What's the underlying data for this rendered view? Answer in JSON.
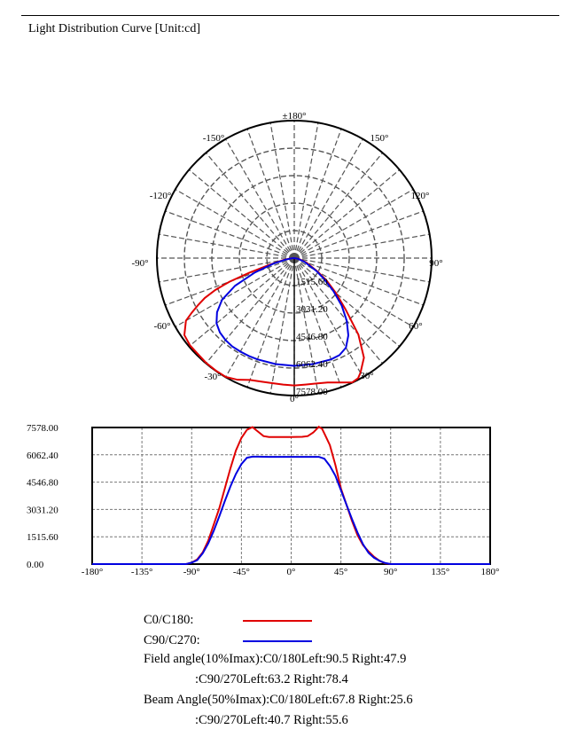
{
  "header": {
    "title": "Light Distribution Curve [Unit:cd]"
  },
  "colors": {
    "c0": "#e00000",
    "c90": "#0000e0",
    "grid": "#555555"
  },
  "chart_data": [
    {
      "type": "polar",
      "angle_labels": [
        "±180°",
        "150°",
        "120°",
        "90°",
        "60°",
        "30°",
        "0°",
        "-30°",
        "-60°",
        "-90°",
        "-120°",
        "-150°"
      ],
      "radial_labels": [
        "1515.60",
        "3031.20",
        "4546.80",
        "6062.40",
        "7578.00"
      ],
      "rmax": 7578.0,
      "series": [
        {
          "name": "C0/C180",
          "points": [
            [
              -90,
              0
            ],
            [
              -85,
              200
            ],
            [
              -80,
              600
            ],
            [
              -75,
              1400
            ],
            [
              -72,
              2600
            ],
            [
              -70,
              3800
            ],
            [
              -68,
              4700
            ],
            [
              -66,
              5400
            ],
            [
              -64,
              5900
            ],
            [
              -62,
              6400
            ],
            [
              -60,
              6900
            ],
            [
              -55,
              7400
            ],
            [
              -50,
              7500
            ],
            [
              -45,
              7500
            ],
            [
              -40,
              7550
            ],
            [
              -35,
              7560
            ],
            [
              -30,
              7560
            ],
            [
              -25,
              7400
            ],
            [
              -20,
              7150
            ],
            [
              -15,
              7050
            ],
            [
              -10,
              7000
            ],
            [
              -5,
              7000
            ],
            [
              0,
              7020
            ],
            [
              5,
              7000
            ],
            [
              10,
              7020
            ],
            [
              15,
              7100
            ],
            [
              20,
              7300
            ],
            [
              25,
              7560
            ],
            [
              28,
              7500
            ],
            [
              30,
              7300
            ],
            [
              35,
              6700
            ],
            [
              40,
              5500
            ],
            [
              45,
              4000
            ],
            [
              50,
              3000
            ],
            [
              55,
              2200
            ],
            [
              60,
              1500
            ],
            [
              70,
              700
            ],
            [
              80,
              250
            ],
            [
              90,
              0
            ]
          ]
        },
        {
          "name": "C90/C270",
          "points": [
            [
              -90,
              0
            ],
            [
              -85,
              150
            ],
            [
              -80,
              500
            ],
            [
              -75,
              1200
            ],
            [
              -70,
              2300
            ],
            [
              -65,
              3600
            ],
            [
              -60,
              4600
            ],
            [
              -55,
              5200
            ],
            [
              -50,
              5600
            ],
            [
              -45,
              5800
            ],
            [
              -40,
              5900
            ],
            [
              -35,
              5950
            ],
            [
              -30,
              5950
            ],
            [
              -25,
              5950
            ],
            [
              -20,
              5940
            ],
            [
              -10,
              5930
            ],
            [
              0,
              5940
            ],
            [
              10,
              5930
            ],
            [
              20,
              5940
            ],
            [
              25,
              5900
            ],
            [
              30,
              5700
            ],
            [
              35,
              5200
            ],
            [
              40,
              4500
            ],
            [
              45,
              3700
            ],
            [
              50,
              2800
            ],
            [
              55,
              2000
            ],
            [
              60,
              1400
            ],
            [
              70,
              600
            ],
            [
              80,
              200
            ],
            [
              90,
              0
            ]
          ]
        }
      ]
    },
    {
      "type": "line",
      "xlim": [
        -180,
        180
      ],
      "ylim": [
        0,
        7578
      ],
      "x_ticks": [
        "-180°",
        "-135°",
        "-90°",
        "-45°",
        "0°",
        "45°",
        "90°",
        "135°",
        "180°"
      ],
      "y_ticks": [
        "0.00",
        "1515.60",
        "3031.20",
        "4546.80",
        "6062.40",
        "7578.00"
      ],
      "grid": true,
      "series": [
        {
          "name": "C0/C180",
          "points": [
            [
              -180,
              0
            ],
            [
              -95,
              0
            ],
            [
              -90,
              80
            ],
            [
              -85,
              260
            ],
            [
              -80,
              650
            ],
            [
              -75,
              1300
            ],
            [
              -70,
              2200
            ],
            [
              -65,
              3100
            ],
            [
              -60,
              4200
            ],
            [
              -55,
              5300
            ],
            [
              -50,
              6300
            ],
            [
              -45,
              7000
            ],
            [
              -40,
              7450
            ],
            [
              -35,
              7600
            ],
            [
              -30,
              7350
            ],
            [
              -25,
              7100
            ],
            [
              -20,
              7050
            ],
            [
              -10,
              7050
            ],
            [
              0,
              7050
            ],
            [
              10,
              7060
            ],
            [
              15,
              7100
            ],
            [
              20,
              7300
            ],
            [
              25,
              7620
            ],
            [
              28,
              7500
            ],
            [
              30,
              7250
            ],
            [
              35,
              6600
            ],
            [
              40,
              5500
            ],
            [
              45,
              4200
            ],
            [
              50,
              3300
            ],
            [
              55,
              2400
            ],
            [
              60,
              1600
            ],
            [
              65,
              1050
            ],
            [
              70,
              700
            ],
            [
              75,
              400
            ],
            [
              80,
              180
            ],
            [
              85,
              40
            ],
            [
              90,
              0
            ],
            [
              180,
              0
            ]
          ]
        },
        {
          "name": "C90/C270",
          "points": [
            [
              -180,
              0
            ],
            [
              -95,
              0
            ],
            [
              -90,
              80
            ],
            [
              -85,
              220
            ],
            [
              -80,
              600
            ],
            [
              -75,
              1150
            ],
            [
              -70,
              1850
            ],
            [
              -65,
              2650
            ],
            [
              -60,
              3500
            ],
            [
              -55,
              4300
            ],
            [
              -50,
              5000
            ],
            [
              -45,
              5550
            ],
            [
              -40,
              5900
            ],
            [
              -35,
              5960
            ],
            [
              -30,
              5960
            ],
            [
              -20,
              5950
            ],
            [
              -10,
              5950
            ],
            [
              0,
              5950
            ],
            [
              10,
              5950
            ],
            [
              20,
              5950
            ],
            [
              25,
              5950
            ],
            [
              30,
              5850
            ],
            [
              35,
              5450
            ],
            [
              40,
              4900
            ],
            [
              45,
              4100
            ],
            [
              50,
              3300
            ],
            [
              55,
              2500
            ],
            [
              60,
              1750
            ],
            [
              65,
              1100
            ],
            [
              70,
              620
            ],
            [
              75,
              350
            ],
            [
              80,
              180
            ],
            [
              85,
              60
            ],
            [
              90,
              0
            ],
            [
              180,
              0
            ]
          ]
        }
      ]
    }
  ],
  "legend": {
    "c0_label": "C0/C180:",
    "c90_label": "C90/C270:"
  },
  "stats": {
    "field_c0": "Field angle(10%Imax):C0/180Left:90.5 Right:47.9",
    "field_c90": ":C90/270Left:63.2 Right:78.4",
    "beam_c0": "Beam Angle(50%Imax):C0/180Left:67.8 Right:25.6",
    "beam_c90": ":C90/270Left:40.7 Right:55.6"
  }
}
